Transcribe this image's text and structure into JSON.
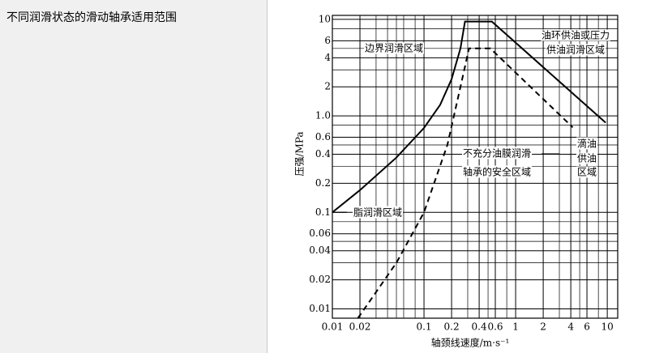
{
  "panel_title": "不同润滑状态的滑动轴承适用范围",
  "chart_data": {
    "type": "line",
    "x_label": "轴颈线速度/m·s⁻¹",
    "y_label": "压强/MPa",
    "xlog": true,
    "ylog": true,
    "grid": true,
    "xlim": [
      0.01,
      13
    ],
    "ylim": [
      0.008,
      11
    ],
    "xticks": [
      0.01,
      0.02,
      0.1,
      0.2,
      0.4,
      0.6,
      1,
      2,
      4,
      6,
      10
    ],
    "xminor": [
      0.03,
      0.04,
      0.05,
      0.06,
      0.08,
      0.3,
      0.5,
      0.8,
      3,
      5,
      8
    ],
    "yticks": [
      0.01,
      0.02,
      0.04,
      0.06,
      0.1,
      0.2,
      0.4,
      0.6,
      {
        "value": 1,
        "label": "1.0"
      },
      2,
      4,
      6,
      10
    ],
    "yminor": [
      0.03,
      0.05,
      0.08,
      0.3,
      0.5,
      0.8,
      3,
      5,
      8
    ],
    "series": [
      {
        "color": "#000000",
        "style": "solid",
        "x": [
          0.01,
          0.02,
          0.05,
          0.1,
          0.15,
          0.2,
          0.25,
          0.28,
          0.55,
          9.6
        ],
        "values": [
          0.1,
          0.17,
          0.37,
          0.75,
          1.3,
          2.4,
          5,
          9.5,
          9.5,
          0.85
        ]
      },
      {
        "color": "#000000",
        "style": "dashed",
        "x": [
          0.019,
          0.05,
          0.1,
          0.18,
          0.25,
          0.31,
          0.53,
          4.2
        ],
        "values": [
          0.008,
          0.03,
          0.1,
          0.5,
          2,
          5,
          5,
          0.76
        ]
      }
    ],
    "annotations": [
      {
        "lines": [
          "边界润滑区域"
        ]
      },
      {
        "lines": [
          "油环供油或压力",
          "供油润滑区域"
        ]
      },
      {
        "lines": [
          "不充分油膜润滑",
          "轴承的安全区域"
        ]
      },
      {
        "lines": [
          "滴油",
          "供油",
          "区域"
        ]
      },
      {
        "lines": [
          "脂润滑区域"
        ]
      }
    ]
  }
}
